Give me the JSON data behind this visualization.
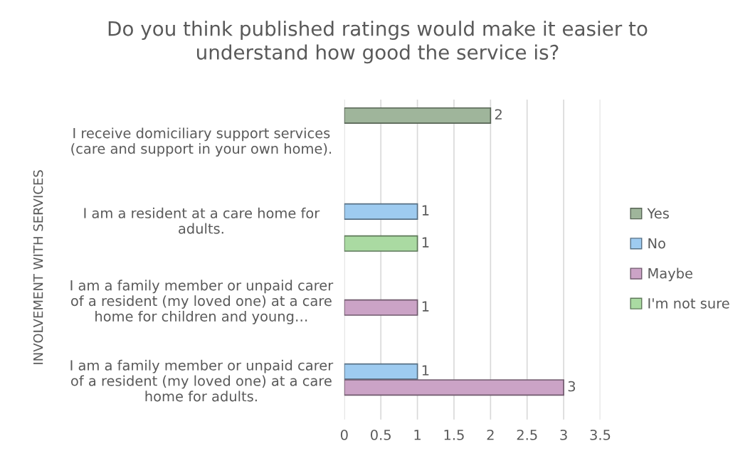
{
  "chart_data": {
    "type": "bar",
    "orientation": "horizontal",
    "title": "Do you think published ratings would make it easier to understand how good the service is?",
    "ylabel": "INVOLVEMENT WITH SERVICES",
    "categories": [
      "I receive domiciliary support services (care and support in your own home).",
      "I am a resident at a care home for adults.",
      "I am a family member or unpaid carer of a resident (my loved one) at a care home for children and young…",
      "I am a family member or unpaid carer of a resident (my loved one) at a care home for adults."
    ],
    "series": [
      {
        "name": "Yes",
        "color": "#9fb59b",
        "values": [
          2,
          null,
          null,
          null
        ]
      },
      {
        "name": "No",
        "color": "#9ecbf0",
        "values": [
          null,
          1,
          null,
          1
        ]
      },
      {
        "name": "Maybe",
        "color": "#cba3c6",
        "values": [
          null,
          null,
          1,
          3
        ]
      },
      {
        "name": "I'm not sure",
        "color": "#aadaa2",
        "values": [
          null,
          1,
          null,
          null
        ]
      }
    ],
    "xlim": [
      0,
      3.5
    ],
    "xticks": [
      0,
      0.5,
      1,
      1.5,
      2,
      2.5,
      3,
      3.5
    ],
    "grid": "x",
    "legend": "right",
    "data_labels": true
  }
}
